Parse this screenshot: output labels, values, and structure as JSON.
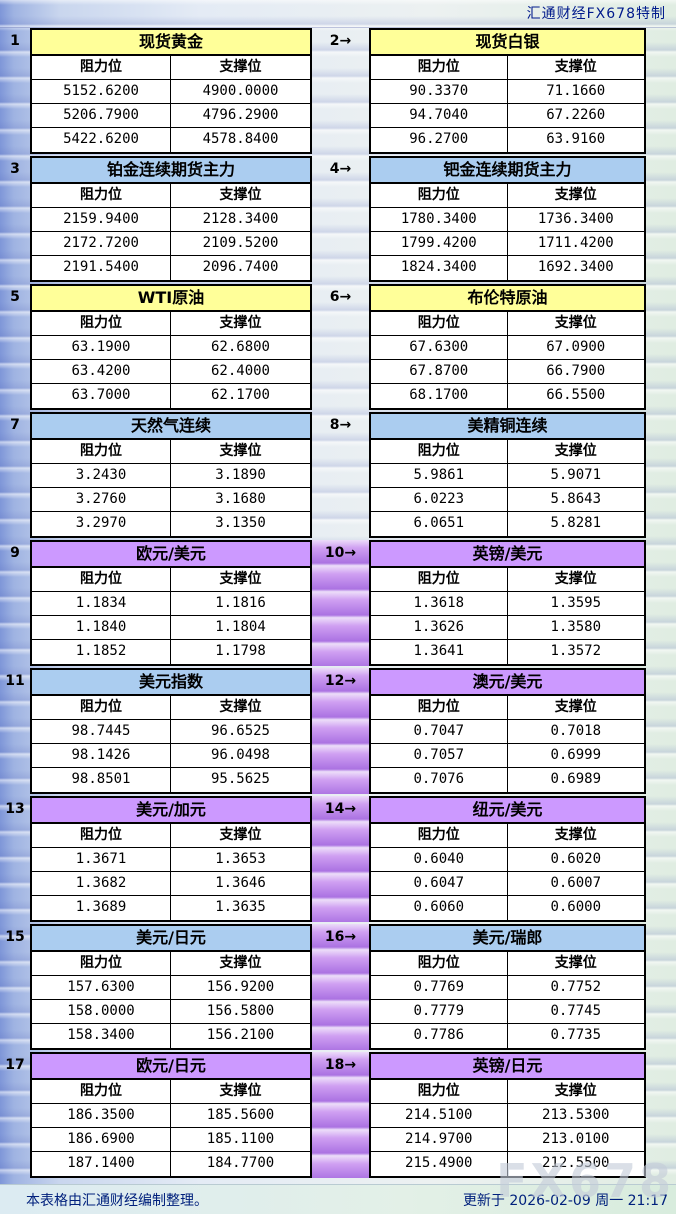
{
  "header": {
    "brand": "汇通财经FX678特制"
  },
  "table": {
    "resistance_header": "阻力位",
    "support_header": "支撑位"
  },
  "colors": {
    "yellow": "#ffff99",
    "blue": "#abcdf0",
    "purple": "#cc99ff",
    "page_left_blue": "#7e96d8",
    "gutter_purple": "#ab72e2",
    "footer_text": "#00207c"
  },
  "panels": [
    {
      "num": "1",
      "title": "现货黄金",
      "color": "yellow",
      "rows": [
        [
          "5152.6200",
          "4900.0000"
        ],
        [
          "5206.7900",
          "4796.2900"
        ],
        [
          "5422.6200",
          "4578.8400"
        ]
      ]
    },
    {
      "num": "2→",
      "title": "现货白银",
      "color": "yellow",
      "rows": [
        [
          "90.3370",
          "71.1660"
        ],
        [
          "94.7040",
          "67.2260"
        ],
        [
          "96.2700",
          "63.9160"
        ]
      ]
    },
    {
      "num": "3",
      "title": "铂金连续期货主力",
      "color": "blue",
      "rows": [
        [
          "2159.9400",
          "2128.3400"
        ],
        [
          "2172.7200",
          "2109.5200"
        ],
        [
          "2191.5400",
          "2096.7400"
        ]
      ]
    },
    {
      "num": "4→",
      "title": "钯金连续期货主力",
      "color": "blue",
      "rows": [
        [
          "1780.3400",
          "1736.3400"
        ],
        [
          "1799.4200",
          "1711.4200"
        ],
        [
          "1824.3400",
          "1692.3400"
        ]
      ]
    },
    {
      "num": "5",
      "title": "WTI原油",
      "color": "yellow",
      "rows": [
        [
          "63.1900",
          "62.6800"
        ],
        [
          "63.4200",
          "62.4000"
        ],
        [
          "63.7000",
          "62.1700"
        ]
      ]
    },
    {
      "num": "6→",
      "title": "布伦特原油",
      "color": "yellow",
      "rows": [
        [
          "67.6300",
          "67.0900"
        ],
        [
          "67.8700",
          "66.7900"
        ],
        [
          "68.1700",
          "66.5500"
        ]
      ]
    },
    {
      "num": "7",
      "title": "天然气连续",
      "color": "blue",
      "rows": [
        [
          "3.2430",
          "3.1890"
        ],
        [
          "3.2760",
          "3.1680"
        ],
        [
          "3.2970",
          "3.1350"
        ]
      ]
    },
    {
      "num": "8→",
      "title": "美精铜连续",
      "color": "blue",
      "rows": [
        [
          "5.9861",
          "5.9071"
        ],
        [
          "6.0223",
          "5.8643"
        ],
        [
          "6.0651",
          "5.8281"
        ]
      ]
    },
    {
      "num": "9",
      "title": "欧元/美元",
      "color": "purple",
      "rows": [
        [
          "1.1834",
          "1.1816"
        ],
        [
          "1.1840",
          "1.1804"
        ],
        [
          "1.1852",
          "1.1798"
        ]
      ]
    },
    {
      "num": "10→",
      "title": "英镑/美元",
      "color": "purple",
      "rows": [
        [
          "1.3618",
          "1.3595"
        ],
        [
          "1.3626",
          "1.3580"
        ],
        [
          "1.3641",
          "1.3572"
        ]
      ]
    },
    {
      "num": "11",
      "title": "美元指数",
      "color": "blue",
      "rows": [
        [
          "98.7445",
          "96.6525"
        ],
        [
          "98.1426",
          "96.0498"
        ],
        [
          "98.8501",
          "95.5625"
        ]
      ]
    },
    {
      "num": "12→",
      "title": "澳元/美元",
      "color": "purple",
      "rows": [
        [
          "0.7047",
          "0.7018"
        ],
        [
          "0.7057",
          "0.6999"
        ],
        [
          "0.7076",
          "0.6989"
        ]
      ]
    },
    {
      "num": "13",
      "title": "美元/加元",
      "color": "purple",
      "rows": [
        [
          "1.3671",
          "1.3653"
        ],
        [
          "1.3682",
          "1.3646"
        ],
        [
          "1.3689",
          "1.3635"
        ]
      ]
    },
    {
      "num": "14→",
      "title": "纽元/美元",
      "color": "purple",
      "rows": [
        [
          "0.6040",
          "0.6020"
        ],
        [
          "0.6047",
          "0.6007"
        ],
        [
          "0.6060",
          "0.6000"
        ]
      ]
    },
    {
      "num": "15",
      "title": "美元/日元",
      "color": "blue",
      "rows": [
        [
          "157.6300",
          "156.9200"
        ],
        [
          "158.0000",
          "156.5800"
        ],
        [
          "158.3400",
          "156.2100"
        ]
      ]
    },
    {
      "num": "16→",
      "title": "美元/瑞郎",
      "color": "blue",
      "rows": [
        [
          "0.7769",
          "0.7752"
        ],
        [
          "0.7779",
          "0.7745"
        ],
        [
          "0.7786",
          "0.7735"
        ]
      ]
    },
    {
      "num": "17",
      "title": "欧元/日元",
      "color": "purple",
      "rows": [
        [
          "186.3500",
          "185.5600"
        ],
        [
          "186.6900",
          "185.1100"
        ],
        [
          "187.1400",
          "184.7700"
        ]
      ]
    },
    {
      "num": "18→",
      "title": "英镑/日元",
      "color": "purple",
      "rows": [
        [
          "214.5100",
          "213.5300"
        ],
        [
          "214.9700",
          "213.0100"
        ],
        [
          "215.4900",
          "212.5500"
        ]
      ]
    }
  ],
  "footer": {
    "note": "本表格由汇通财经编制整理。",
    "updated": "更新于 2026-02-09 周一 21:17",
    "watermark": "FX678"
  }
}
